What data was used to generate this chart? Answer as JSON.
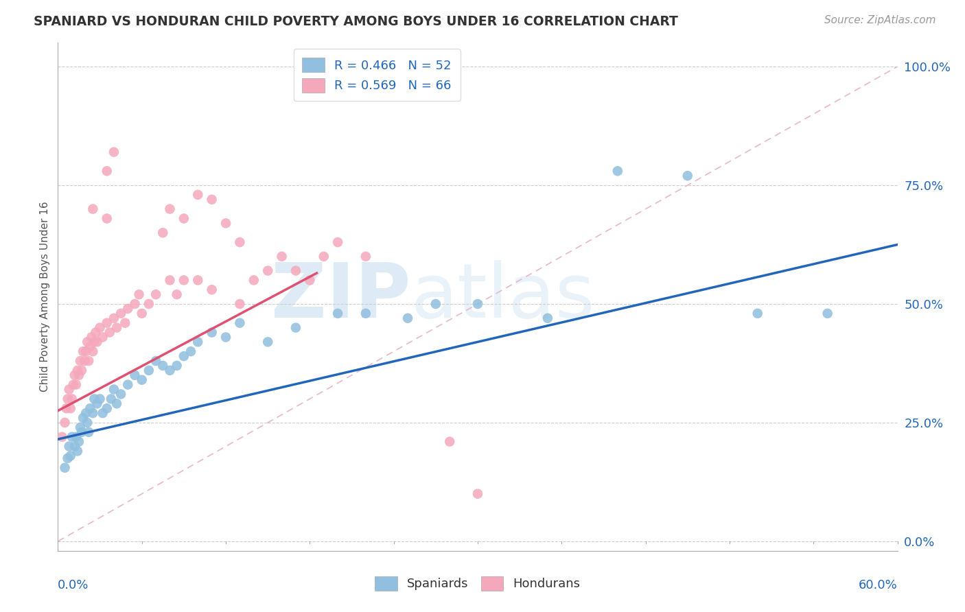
{
  "title": "SPANIARD VS HONDURAN CHILD POVERTY AMONG BOYS UNDER 16 CORRELATION CHART",
  "source": "Source: ZipAtlas.com",
  "ylabel": "Child Poverty Among Boys Under 16",
  "yticks": [
    0.0,
    0.25,
    0.5,
    0.75,
    1.0
  ],
  "ytick_labels": [
    "0.0%",
    "25.0%",
    "50.0%",
    "75.0%",
    "100.0%"
  ],
  "xlim": [
    0.0,
    0.6
  ],
  "ylim": [
    -0.02,
    1.05
  ],
  "spaniard_color": "#90bfdf",
  "honduran_color": "#f5a8bc",
  "spaniard_R": 0.466,
  "spaniard_N": 52,
  "honduran_R": 0.569,
  "honduran_N": 66,
  "trend_spaniard_color": "#2266bb",
  "trend_honduran_color": "#e05070",
  "background_color": "#ffffff",
  "spaniards_scatter": [
    [
      0.005,
      0.155
    ],
    [
      0.007,
      0.175
    ],
    [
      0.008,
      0.2
    ],
    [
      0.009,
      0.18
    ],
    [
      0.01,
      0.22
    ],
    [
      0.012,
      0.2
    ],
    [
      0.013,
      0.22
    ],
    [
      0.014,
      0.19
    ],
    [
      0.015,
      0.21
    ],
    [
      0.016,
      0.24
    ],
    [
      0.017,
      0.23
    ],
    [
      0.018,
      0.26
    ],
    [
      0.02,
      0.27
    ],
    [
      0.021,
      0.25
    ],
    [
      0.022,
      0.23
    ],
    [
      0.023,
      0.28
    ],
    [
      0.025,
      0.27
    ],
    [
      0.026,
      0.3
    ],
    [
      0.028,
      0.29
    ],
    [
      0.03,
      0.3
    ],
    [
      0.032,
      0.27
    ],
    [
      0.035,
      0.28
    ],
    [
      0.038,
      0.3
    ],
    [
      0.04,
      0.32
    ],
    [
      0.042,
      0.29
    ],
    [
      0.045,
      0.31
    ],
    [
      0.05,
      0.33
    ],
    [
      0.055,
      0.35
    ],
    [
      0.06,
      0.34
    ],
    [
      0.065,
      0.36
    ],
    [
      0.07,
      0.38
    ],
    [
      0.075,
      0.37
    ],
    [
      0.08,
      0.36
    ],
    [
      0.085,
      0.37
    ],
    [
      0.09,
      0.39
    ],
    [
      0.095,
      0.4
    ],
    [
      0.1,
      0.42
    ],
    [
      0.11,
      0.44
    ],
    [
      0.12,
      0.43
    ],
    [
      0.13,
      0.46
    ],
    [
      0.15,
      0.42
    ],
    [
      0.17,
      0.45
    ],
    [
      0.2,
      0.48
    ],
    [
      0.22,
      0.48
    ],
    [
      0.25,
      0.47
    ],
    [
      0.27,
      0.5
    ],
    [
      0.3,
      0.5
    ],
    [
      0.35,
      0.47
    ],
    [
      0.4,
      0.78
    ],
    [
      0.45,
      0.77
    ],
    [
      0.5,
      0.48
    ],
    [
      0.55,
      0.48
    ]
  ],
  "hondurans_scatter": [
    [
      0.003,
      0.22
    ],
    [
      0.005,
      0.25
    ],
    [
      0.006,
      0.28
    ],
    [
      0.007,
      0.3
    ],
    [
      0.008,
      0.32
    ],
    [
      0.009,
      0.28
    ],
    [
      0.01,
      0.3
    ],
    [
      0.011,
      0.33
    ],
    [
      0.012,
      0.35
    ],
    [
      0.013,
      0.33
    ],
    [
      0.014,
      0.36
    ],
    [
      0.015,
      0.35
    ],
    [
      0.016,
      0.38
    ],
    [
      0.017,
      0.36
    ],
    [
      0.018,
      0.4
    ],
    [
      0.019,
      0.38
    ],
    [
      0.02,
      0.4
    ],
    [
      0.021,
      0.42
    ],
    [
      0.022,
      0.38
    ],
    [
      0.023,
      0.41
    ],
    [
      0.024,
      0.43
    ],
    [
      0.025,
      0.4
    ],
    [
      0.026,
      0.42
    ],
    [
      0.027,
      0.44
    ],
    [
      0.028,
      0.42
    ],
    [
      0.03,
      0.45
    ],
    [
      0.032,
      0.43
    ],
    [
      0.035,
      0.46
    ],
    [
      0.037,
      0.44
    ],
    [
      0.04,
      0.47
    ],
    [
      0.042,
      0.45
    ],
    [
      0.045,
      0.48
    ],
    [
      0.048,
      0.46
    ],
    [
      0.05,
      0.49
    ],
    [
      0.055,
      0.5
    ],
    [
      0.058,
      0.52
    ],
    [
      0.06,
      0.48
    ],
    [
      0.065,
      0.5
    ],
    [
      0.07,
      0.52
    ],
    [
      0.075,
      0.65
    ],
    [
      0.08,
      0.55
    ],
    [
      0.085,
      0.52
    ],
    [
      0.09,
      0.55
    ],
    [
      0.1,
      0.55
    ],
    [
      0.11,
      0.53
    ],
    [
      0.12,
      0.67
    ],
    [
      0.13,
      0.63
    ],
    [
      0.14,
      0.55
    ],
    [
      0.15,
      0.57
    ],
    [
      0.16,
      0.6
    ],
    [
      0.17,
      0.57
    ],
    [
      0.18,
      0.55
    ],
    [
      0.19,
      0.6
    ],
    [
      0.2,
      0.63
    ],
    [
      0.22,
      0.6
    ],
    [
      0.13,
      0.5
    ],
    [
      0.08,
      0.7
    ],
    [
      0.09,
      0.68
    ],
    [
      0.1,
      0.73
    ],
    [
      0.11,
      0.72
    ],
    [
      0.035,
      0.78
    ],
    [
      0.04,
      0.82
    ],
    [
      0.035,
      0.68
    ],
    [
      0.025,
      0.7
    ],
    [
      0.28,
      0.21
    ],
    [
      0.3,
      0.1
    ]
  ],
  "sp_trend_x": [
    0.0,
    0.6
  ],
  "sp_trend_y": [
    0.215,
    0.625
  ],
  "ho_trend_x": [
    0.0,
    0.185
  ],
  "ho_trend_y": [
    0.275,
    0.565
  ]
}
